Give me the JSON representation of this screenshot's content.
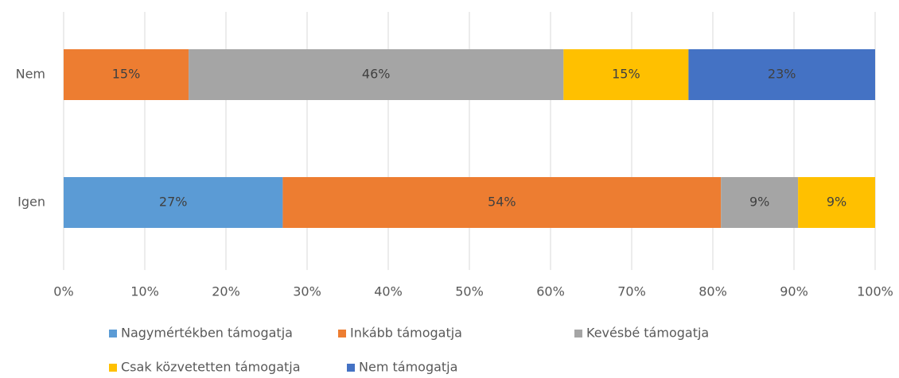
{
  "chart_data": {
    "type": "stacked-barh",
    "categories": [
      "Nem",
      "Igen"
    ],
    "series": [
      {
        "name": "Nagymértékben támogatja",
        "color": "#5b9bd5",
        "values": [
          null,
          27.0
        ],
        "value_labels": [
          null,
          "27%"
        ]
      },
      {
        "name": "Inkább támogatja",
        "color": "#ed7d31",
        "values": [
          15.4,
          54.0
        ],
        "value_labels": [
          "15%",
          "54%"
        ]
      },
      {
        "name": "Kevésbé támogatja",
        "color": "#a5a5a5",
        "values": [
          46.2,
          9.5
        ],
        "value_labels": [
          "46%",
          "9%"
        ]
      },
      {
        "name": "Csak közvetetten támogatja",
        "color": "#ffc000",
        "values": [
          15.4,
          9.5
        ],
        "value_labels": [
          "15%",
          "9%"
        ]
      },
      {
        "name": "Nem támogatja",
        "color": "#4472c4",
        "values": [
          23.0,
          null
        ],
        "value_labels": [
          "23%",
          null
        ]
      }
    ],
    "xlim": [
      0,
      100
    ],
    "xticks": [
      {
        "value": 0,
        "label": "0%"
      },
      {
        "value": 10,
        "label": "10%"
      },
      {
        "value": 20,
        "label": "20%"
      },
      {
        "value": 30,
        "label": "30%"
      },
      {
        "value": 40,
        "label": "40%"
      },
      {
        "value": 50,
        "label": "50%"
      },
      {
        "value": 60,
        "label": "60%"
      },
      {
        "value": 70,
        "label": "70%"
      },
      {
        "value": 80,
        "label": "80%"
      },
      {
        "value": 90,
        "label": "90%"
      },
      {
        "value": 100,
        "label": "100%"
      }
    ],
    "grid": true,
    "legend": "bottom"
  }
}
